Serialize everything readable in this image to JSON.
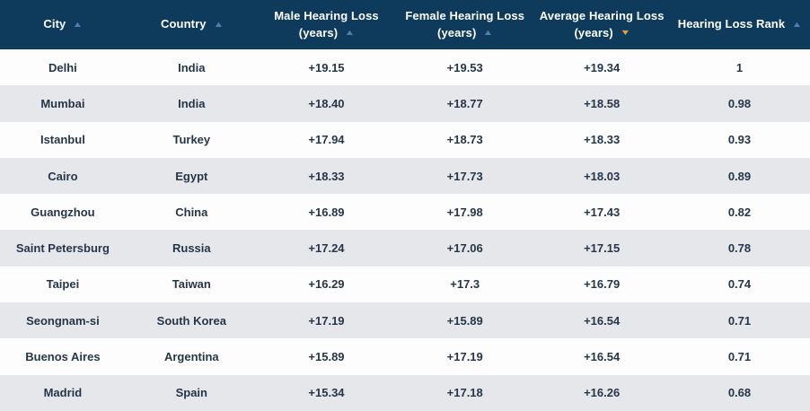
{
  "table": {
    "columns": [
      {
        "id": "city",
        "label": "City",
        "unit": "",
        "sort_dir": "asc",
        "sort_active": false
      },
      {
        "id": "country",
        "label": "Country",
        "unit": "",
        "sort_dir": "asc",
        "sort_active": false
      },
      {
        "id": "male",
        "label": "Male Hearing Loss",
        "unit": "(years)",
        "sort_dir": "asc",
        "sort_active": false
      },
      {
        "id": "female",
        "label": "Female Hearing Loss",
        "unit": "(years)",
        "sort_dir": "asc",
        "sort_active": false
      },
      {
        "id": "average",
        "label": "Average Hearing Loss",
        "unit": "(years)",
        "sort_dir": "desc",
        "sort_active": true
      },
      {
        "id": "rank",
        "label": "Hearing Loss Rank",
        "unit": "",
        "sort_dir": "asc",
        "sort_active": false
      }
    ],
    "rows": [
      {
        "city": "Delhi",
        "country": "India",
        "male": "+19.15",
        "female": "+19.53",
        "average": "+19.34",
        "rank": "1"
      },
      {
        "city": "Mumbai",
        "country": "India",
        "male": "+18.40",
        "female": "+18.77",
        "average": "+18.58",
        "rank": "0.98"
      },
      {
        "city": "Istanbul",
        "country": "Turkey",
        "male": "+17.94",
        "female": "+18.73",
        "average": "+18.33",
        "rank": "0.93"
      },
      {
        "city": "Cairo",
        "country": "Egypt",
        "male": "+18.33",
        "female": "+17.73",
        "average": "+18.03",
        "rank": "0.89"
      },
      {
        "city": "Guangzhou",
        "country": "China",
        "male": "+16.89",
        "female": "+17.98",
        "average": "+17.43",
        "rank": "0.82"
      },
      {
        "city": "Saint Petersburg",
        "country": "Russia",
        "male": "+17.24",
        "female": "+17.06",
        "average": "+17.15",
        "rank": "0.78"
      },
      {
        "city": "Taipei",
        "country": "Taiwan",
        "male": "+16.29",
        "female": "+17.3",
        "average": "+16.79",
        "rank": "0.74"
      },
      {
        "city": "Seongnam-si",
        "country": "South Korea",
        "male": "+17.19",
        "female": "+15.89",
        "average": "+16.54",
        "rank": "0.71"
      },
      {
        "city": "Buenos Aires",
        "country": "Argentina",
        "male": "+15.89",
        "female": "+17.19",
        "average": "+16.54",
        "rank": "0.71"
      },
      {
        "city": "Madrid",
        "country": "Spain",
        "male": "+15.34",
        "female": "+17.18",
        "average": "+16.26",
        "rank": "0.68"
      }
    ]
  },
  "icons": {
    "sort_asc_glyph": "▲",
    "sort_desc_glyph": "▼"
  },
  "colors": {
    "header_bg": "#0e3a5c",
    "header_text": "#ffffff",
    "row_even_bg": "#fdfdfe",
    "row_odd_bg": "#e6e7eb",
    "cell_text": "#263649",
    "sort_inactive_arrow": "#4d7fb5",
    "sort_active_arrow": "#d9a33c"
  }
}
